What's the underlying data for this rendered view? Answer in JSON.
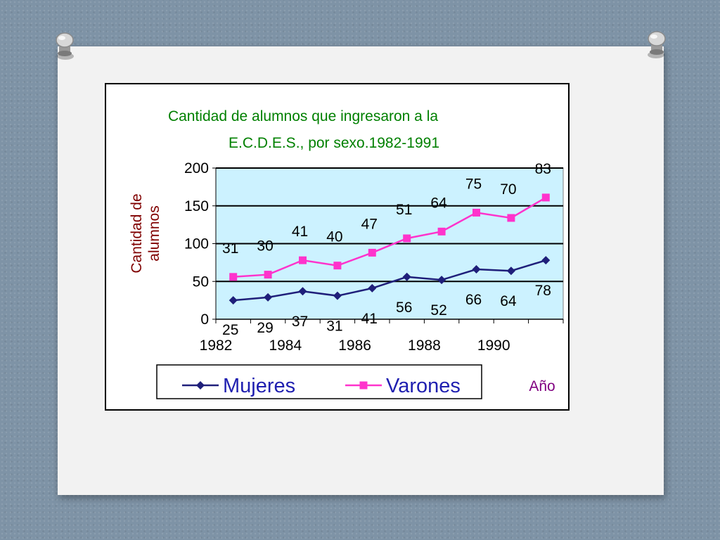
{
  "chart_data": {
    "type": "line",
    "title_line1": "Cantidad de alumnos que ingresaron a la",
    "title_line2": "E.C.D.E.S., por sexo.1982-1991",
    "ylabel_line1": "Cantidad de",
    "ylabel_line2": "alumnos",
    "xlabel": "Año",
    "ylim": [
      0,
      200
    ],
    "yticks": [
      0,
      50,
      100,
      150,
      200
    ],
    "x": [
      1982,
      1983,
      1984,
      1985,
      1986,
      1987,
      1988,
      1989,
      1990,
      1991
    ],
    "xtick_labels": [
      "1982",
      "1984",
      "1986",
      "1988",
      "1990"
    ],
    "xtick_values": [
      1982,
      1984,
      1986,
      1988,
      1990
    ],
    "legend_position": "bottom",
    "series": [
      {
        "name": "Mujeres",
        "color": "#1f1f7a",
        "marker": "diamond",
        "values": [
          25,
          29,
          37,
          31,
          41,
          56,
          52,
          66,
          64,
          78
        ],
        "labels": [
          "25",
          "29",
          "37",
          "31",
          "41",
          "56",
          "52",
          "66",
          "64",
          "78"
        ]
      },
      {
        "name": "Varones",
        "color": "#ff33cc",
        "marker": "square",
        "values": [
          56,
          59,
          78,
          71,
          88,
          107,
          116,
          141,
          134,
          161
        ],
        "labels": [
          "31",
          "30",
          "41",
          "40",
          "47",
          "51",
          "64",
          "75",
          "70",
          "83"
        ]
      }
    ],
    "colors": {
      "plot_background": "#ccf2ff",
      "title": "#008000",
      "ylabel": "#800000",
      "xlabel": "#800080"
    }
  }
}
